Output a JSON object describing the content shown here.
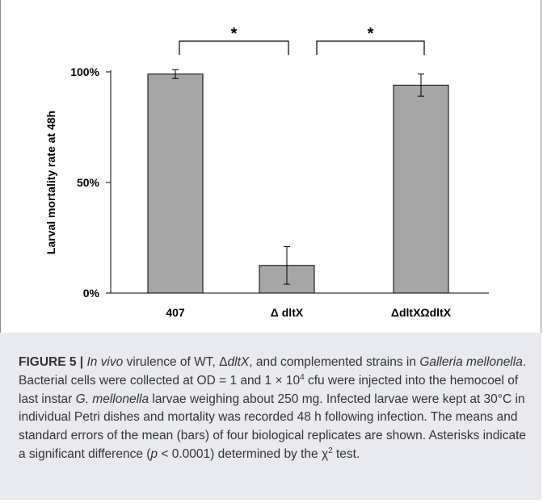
{
  "chart_data": {
    "type": "bar",
    "categories": [
      "407",
      "Δ dltX",
      "ΔdltXΩdltX"
    ],
    "values": [
      99,
      12.5,
      94
    ],
    "errors": [
      2,
      8.5,
      5
    ],
    "ylabel": "Larval mortality rate at 48h",
    "ylim": [
      0,
      100
    ],
    "yticks": [
      "0%",
      "50%",
      "100%"
    ],
    "bar_color": "#a6a6a6",
    "significance": [
      {
        "from": 0,
        "to": 1,
        "label": "*"
      },
      {
        "from": 1,
        "to": 2,
        "label": "*"
      }
    ]
  },
  "caption": {
    "label": "FIGURE 5 |",
    "t1": " ",
    "t2": "In vivo",
    "t3": " virulence of WT, Δ",
    "t4": "dltX",
    "t5": ", and complemented strains in ",
    "t6": "Galleria mellonella",
    "t7": ". Bacterial cells were collected at OD = 1 and 1 × 10",
    "t8": "4",
    "t9": " cfu were injected into the hemocoel of last instar ",
    "t10": "G. mellonella",
    "t11": " larvae weighing about 250 mg. Infected larvae were kept at 30°C in individual Petri dishes and mortality was recorded 48 h following infection. The means and standard errors of the mean (bars) of four biological replicates are shown. Asterisks indicate a significant difference (",
    "t12": "p",
    "t13": " < 0.0001) determined by the χ",
    "t14": "2",
    "t15": " test."
  }
}
